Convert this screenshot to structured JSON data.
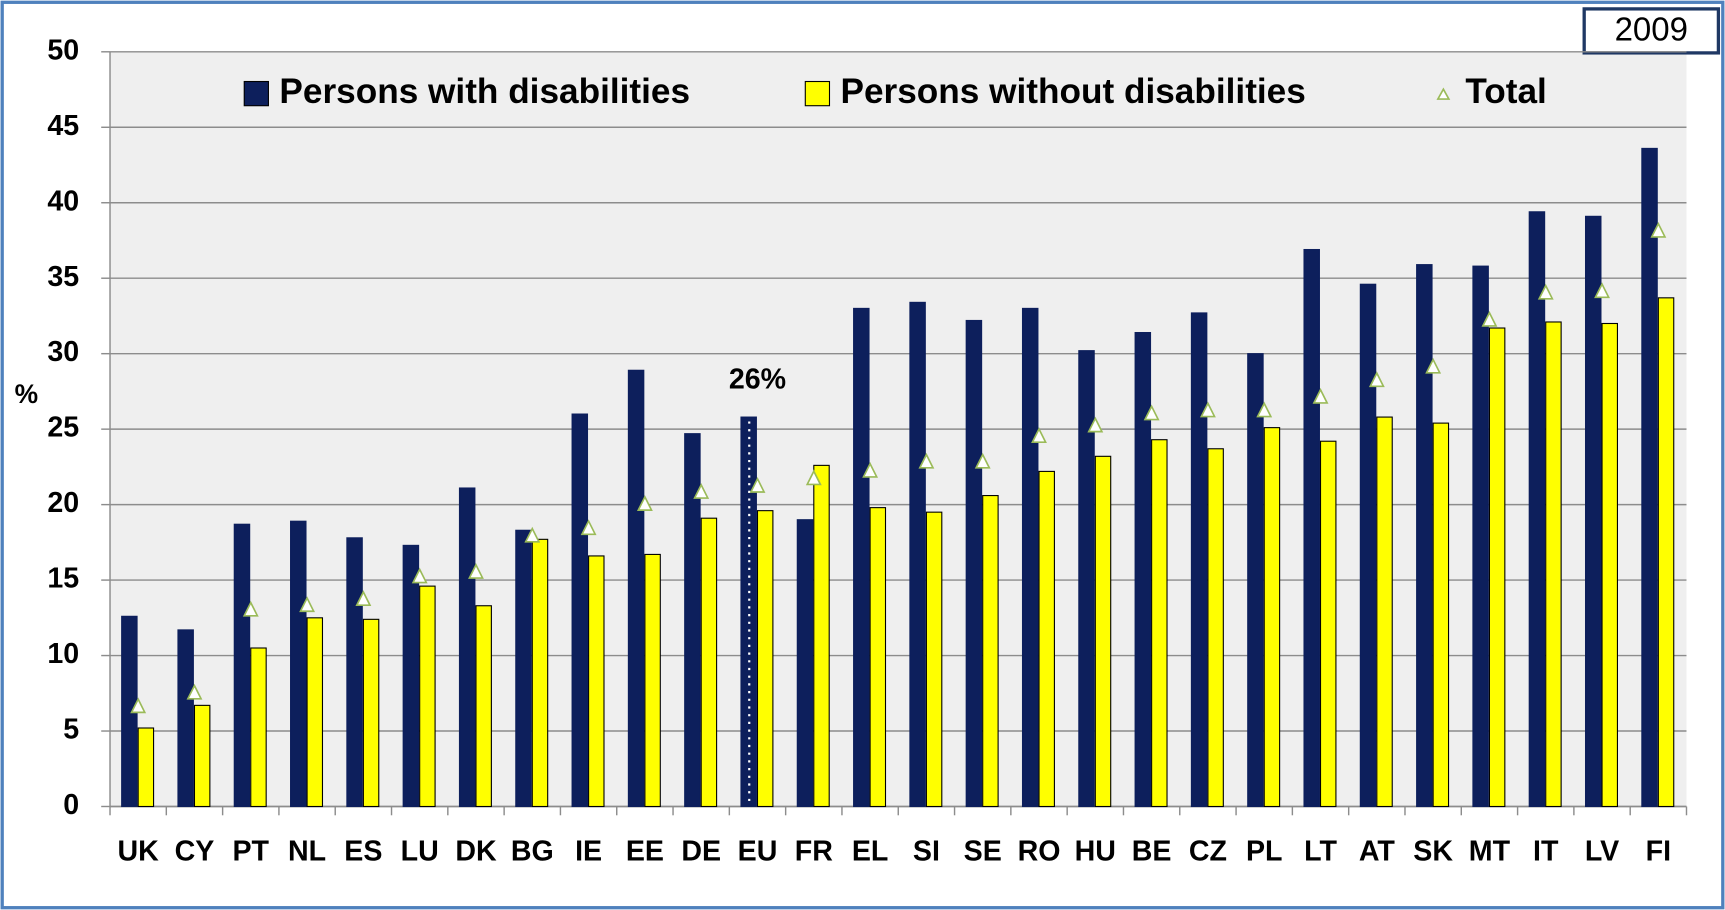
{
  "chart_data": {
    "type": "bar",
    "title": "2009",
    "y_label": "%",
    "categories": [
      "UK",
      "CY",
      "PT",
      "NL",
      "ES",
      "LU",
      "DK",
      "BG",
      "IE",
      "EE",
      "DE",
      "EU",
      "FR",
      "EL",
      "SI",
      "SE",
      "RO",
      "HU",
      "BE",
      "CZ",
      "PL",
      "LT",
      "AT",
      "SK",
      "MT",
      "IT",
      "LV",
      "FI"
    ],
    "series": [
      {
        "name": "Persons with disabilities",
        "color": "#0d1f5c",
        "mark": "bar",
        "values": [
          12.6,
          11.7,
          18.7,
          18.9,
          17.8,
          17.3,
          21.1,
          18.3,
          26.0,
          28.9,
          24.7,
          25.8,
          19.0,
          33.0,
          33.4,
          32.2,
          33.0,
          30.2,
          31.4,
          32.7,
          30.0,
          36.9,
          34.6,
          35.9,
          35.8,
          39.4,
          39.1,
          43.6
        ]
      },
      {
        "name": "Persons without disabilities",
        "color": "#ffff00",
        "mark": "bar",
        "values": [
          5.2,
          6.7,
          10.5,
          12.5,
          12.4,
          14.6,
          13.3,
          17.7,
          16.6,
          16.7,
          19.1,
          19.6,
          22.6,
          19.8,
          19.5,
          20.6,
          22.2,
          23.2,
          24.3,
          23.7,
          25.1,
          24.2,
          25.8,
          25.4,
          31.7,
          32.1,
          32.0,
          33.7
        ]
      },
      {
        "name": "Total",
        "color": "#9bbb59",
        "mark": "triangle",
        "values": [
          6.6,
          7.5,
          13.0,
          13.3,
          13.7,
          15.2,
          15.5,
          17.9,
          18.4,
          20.0,
          20.8,
          21.2,
          21.7,
          22.2,
          22.8,
          22.8,
          24.5,
          25.2,
          26.0,
          26.2,
          26.2,
          27.1,
          28.2,
          29.1,
          32.2,
          34.0,
          34.1,
          38.1
        ]
      }
    ],
    "annotations": [
      {
        "text": "26%",
        "category": "EU"
      }
    ],
    "ylim": [
      0,
      50
    ],
    "yticks": [
      0,
      5,
      10,
      15,
      20,
      25,
      30,
      35,
      40,
      45,
      50
    ],
    "grid": true
  }
}
